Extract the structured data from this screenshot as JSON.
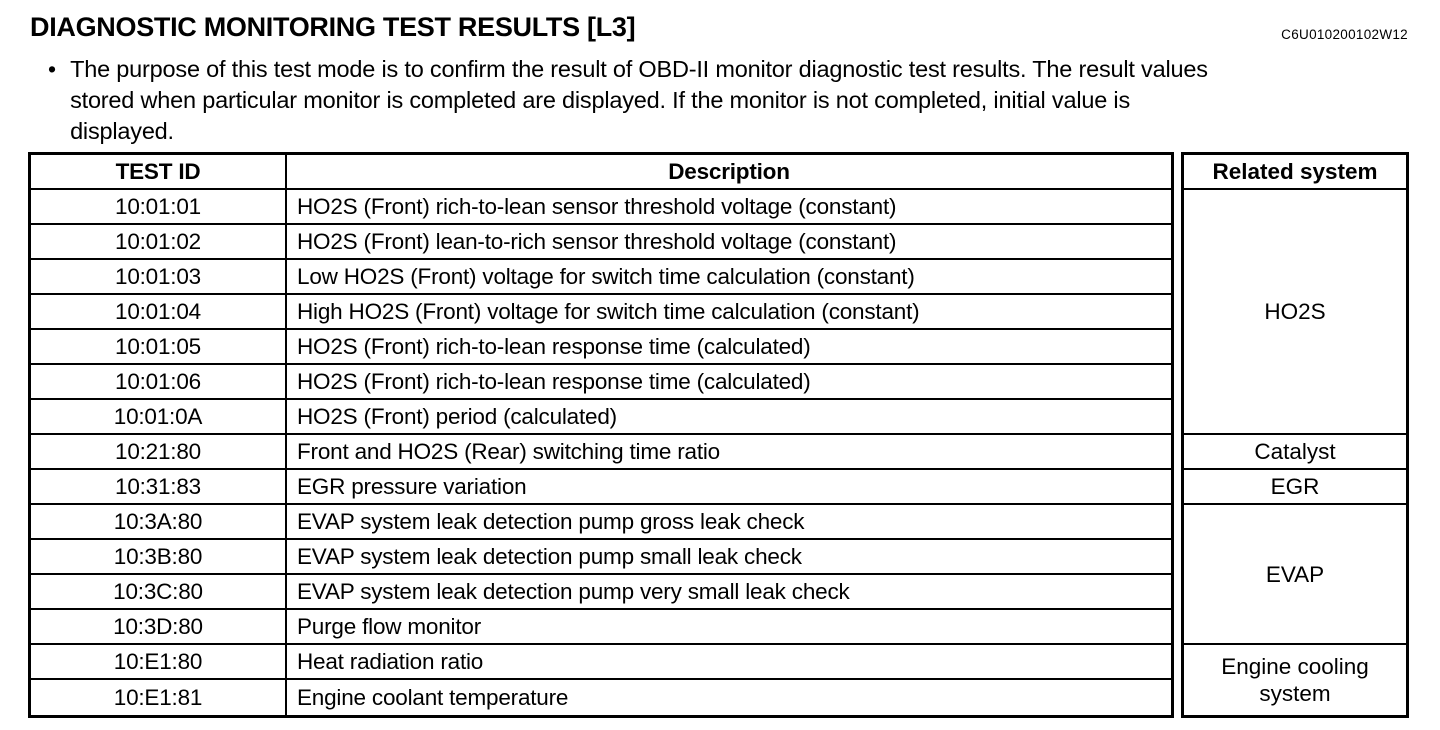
{
  "page": {
    "title": "DIAGNOSTIC MONITORING TEST RESULTS [L3]",
    "doc_code": "C6U010200102W12",
    "bullet_char": "•",
    "bullet_text": "The purpose of this test mode is to confirm the result of OBD-II monitor diagnostic test results. The result values stored when particular monitor is completed are displayed. If the monitor is not completed, initial value is displayed."
  },
  "table": {
    "headers": {
      "test_id": "TEST ID",
      "description": "Description",
      "related_system": "Related system"
    },
    "rows": [
      {
        "test_id": "10:01:01",
        "description": "HO2S (Front) rich-to-lean sensor threshold voltage (constant)"
      },
      {
        "test_id": "10:01:02",
        "description": "HO2S (Front) lean-to-rich sensor threshold voltage (constant)"
      },
      {
        "test_id": "10:01:03",
        "description": "Low HO2S (Front) voltage for switch time calculation (constant)"
      },
      {
        "test_id": "10:01:04",
        "description": "High HO2S (Front) voltage for switch time calculation (constant)"
      },
      {
        "test_id": "10:01:05",
        "description": "HO2S (Front) rich-to-lean response time (calculated)"
      },
      {
        "test_id": "10:01:06",
        "description": "HO2S (Front) rich-to-lean response time (calculated)"
      },
      {
        "test_id": "10:01:0A",
        "description": "HO2S (Front) period (calculated)"
      },
      {
        "test_id": "10:21:80",
        "description": "Front and HO2S (Rear) switching time ratio"
      },
      {
        "test_id": "10:31:83",
        "description": "EGR pressure variation"
      },
      {
        "test_id": "10:3A:80",
        "description": "EVAP system leak detection pump gross leak check"
      },
      {
        "test_id": "10:3B:80",
        "description": "EVAP system leak detection pump small leak check"
      },
      {
        "test_id": "10:3C:80",
        "description": "EVAP system leak detection pump very small leak check"
      },
      {
        "test_id": "10:3D:80",
        "description": "Purge flow monitor"
      },
      {
        "test_id": "10:E1:80",
        "description": "Heat radiation ratio"
      },
      {
        "test_id": "10:E1:81",
        "description": "Engine coolant temperature"
      }
    ],
    "related_groups": [
      {
        "label": "HO2S",
        "rowspan": 7
      },
      {
        "label": "Catalyst",
        "rowspan": 1
      },
      {
        "label": "EGR",
        "rowspan": 1
      },
      {
        "label": "EVAP",
        "rowspan": 4
      },
      {
        "label": "Engine cooling system",
        "rowspan": 2
      }
    ]
  }
}
